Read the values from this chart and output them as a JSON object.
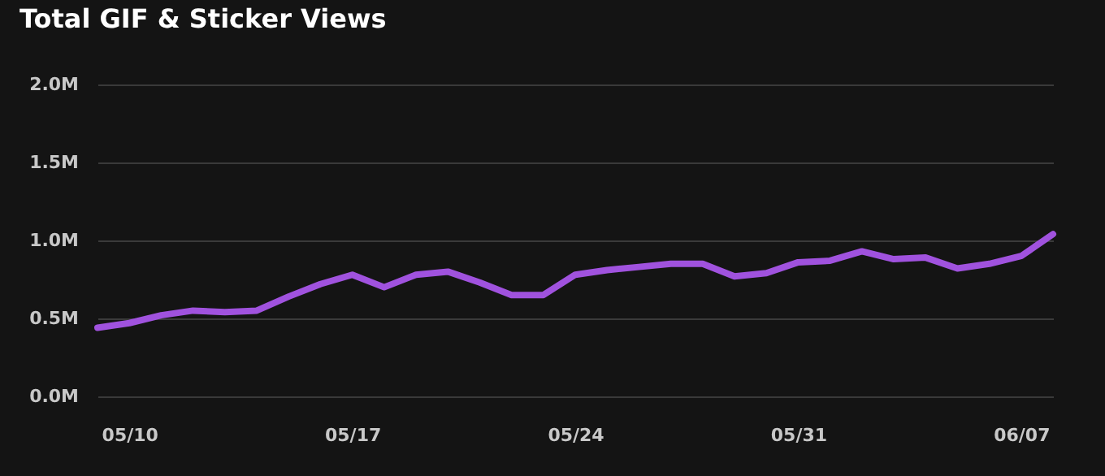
{
  "chart_data": {
    "type": "line",
    "title": "Total GIF & Sticker Views",
    "x": [
      "--05-09",
      "--05-10",
      "--05-11",
      "--05-12",
      "--05-13",
      "--05-14",
      "--05-15",
      "--05-16",
      "--05-17",
      "--05-18",
      "--05-19",
      "--05-20",
      "--05-21",
      "--05-22",
      "--05-23",
      "--05-24",
      "--05-25",
      "--05-26",
      "--05-27",
      "--05-28",
      "--05-29",
      "--05-30",
      "--05-31",
      "--06-01",
      "--06-02",
      "--06-03",
      "--06-04",
      "--06-05",
      "--06-06",
      "--06-07",
      "--06-08"
    ],
    "series": [
      {
        "color": "#a052de",
        "values": [
          0.44,
          0.47,
          0.52,
          0.55,
          0.54,
          0.55,
          0.64,
          0.72,
          0.78,
          0.7,
          0.78,
          0.8,
          0.73,
          0.65,
          0.65,
          0.78,
          0.81,
          0.83,
          0.85,
          0.85,
          0.77,
          0.79,
          0.86,
          0.87,
          0.93,
          0.88,
          0.89,
          0.82,
          0.85,
          0.9,
          1.04
        ]
      }
    ],
    "xlim": [
      "--05-09",
      "--06-08"
    ],
    "xticks": [
      {
        "value": "--05-10",
        "label": "05/10"
      },
      {
        "value": "--05-17",
        "label": "05/17"
      },
      {
        "value": "--05-24",
        "label": "05/24"
      },
      {
        "value": "--05-31",
        "label": "05/31"
      },
      {
        "value": "--06-07",
        "label": "06/07"
      }
    ],
    "ylim": [
      0,
      2
    ],
    "yticks": [
      {
        "value": 0,
        "label": "0.0M"
      },
      {
        "value": 0.5,
        "label": "0.5M"
      },
      {
        "value": 1,
        "label": "1.0M"
      },
      {
        "value": 1.5,
        "label": "1.5M"
      },
      {
        "value": 2,
        "label": "2.0M"
      }
    ],
    "grid": "y",
    "marker": "none",
    "line_style": "solid"
  }
}
